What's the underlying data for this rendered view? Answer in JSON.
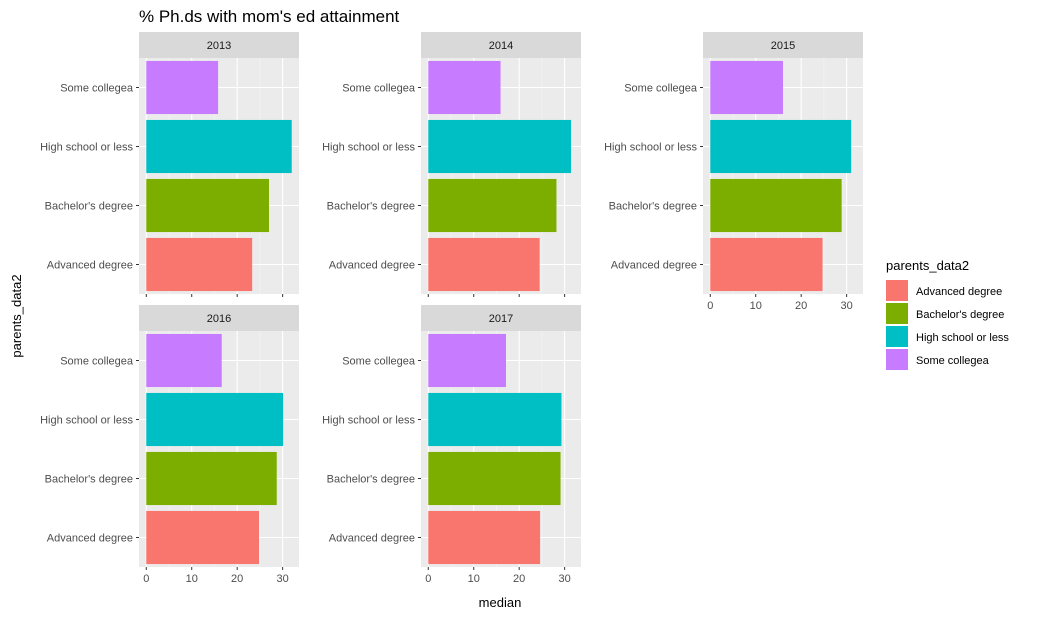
{
  "chart_data": {
    "type": "bar",
    "orientation": "horizontal",
    "title": "% Ph.ds with mom's ed attainment",
    "xlabel": "median",
    "ylabel": "parents_data2",
    "xlim": [
      -1.6,
      33.6
    ],
    "x_ticks": [
      0,
      10,
      20,
      30
    ],
    "grid": true,
    "legend": {
      "title": "parents_data2",
      "position": "right",
      "entries": [
        {
          "label": "Advanced degree",
          "color": "#F8766D"
        },
        {
          "label": "Bachelor's degree",
          "color": "#7CAE00"
        },
        {
          "label": "High school or less",
          "color": "#00BFC4"
        },
        {
          "label": "Some collegea",
          "color": "#C77CFF"
        }
      ]
    },
    "categories": [
      "Some collegea",
      "High school or less",
      "Bachelor's degree",
      "Advanced degree"
    ],
    "facets": [
      {
        "label": "2013",
        "values": {
          "Some collegea": 15.8,
          "High school or less": 32.0,
          "Bachelor's degree": 27.0,
          "Advanced degree": 23.3
        }
      },
      {
        "label": "2014",
        "values": {
          "Some collegea": 15.9,
          "High school or less": 31.4,
          "Bachelor's degree": 28.2,
          "Advanced degree": 24.5
        }
      },
      {
        "label": "2015",
        "values": {
          "Some collegea": 16.0,
          "High school or less": 31.0,
          "Bachelor's degree": 28.9,
          "Advanced degree": 24.7
        }
      },
      {
        "label": "2016",
        "values": {
          "Some collegea": 16.6,
          "High school or less": 30.1,
          "Bachelor's degree": 28.7,
          "Advanced degree": 24.8
        }
      },
      {
        "label": "2017",
        "values": {
          "Some collegea": 17.1,
          "High school or less": 29.3,
          "Bachelor's degree": 29.1,
          "Advanced degree": 24.6
        }
      }
    ]
  }
}
